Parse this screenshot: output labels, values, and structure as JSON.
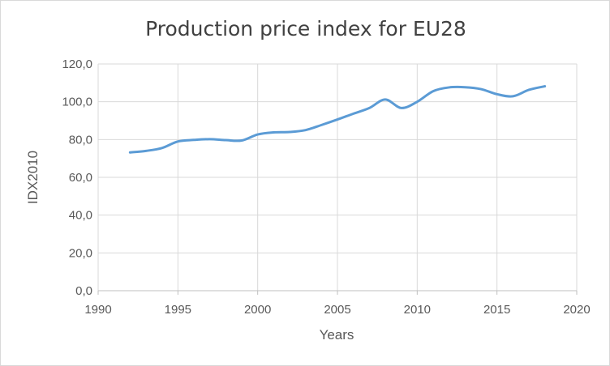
{
  "chart_data": {
    "type": "line",
    "title": "Production price index for EU28",
    "xlabel": "Years",
    "ylabel": "IDX2010",
    "xlim": [
      1990,
      2020
    ],
    "ylim": [
      0,
      120
    ],
    "x_ticks": [
      1990,
      1995,
      2000,
      2005,
      2010,
      2015,
      2020
    ],
    "y_ticks": [
      "0,0",
      "20,0",
      "40,0",
      "60,0",
      "80,0",
      "100,0",
      "120,0"
    ],
    "grid": true,
    "line_color": "#5b9bd5",
    "series": [
      {
        "x": [
          1992,
          1993,
          1994,
          1995,
          1996,
          1997,
          1998,
          1999,
          2000,
          2001,
          2002,
          2003,
          2004,
          2005,
          2006,
          2007,
          2008,
          2009,
          2010,
          2011,
          2012,
          2013,
          2014,
          2015,
          2016,
          2017,
          2018
        ],
        "values": [
          73.2,
          74.0,
          75.5,
          79.0,
          79.8,
          80.2,
          79.7,
          79.5,
          82.7,
          83.8,
          84.0,
          85.0,
          87.7,
          90.6,
          93.7,
          96.7,
          101.2,
          96.7,
          100.0,
          105.6,
          107.6,
          107.7,
          106.7,
          104.0,
          102.9,
          106.3,
          108.2
        ]
      }
    ]
  }
}
